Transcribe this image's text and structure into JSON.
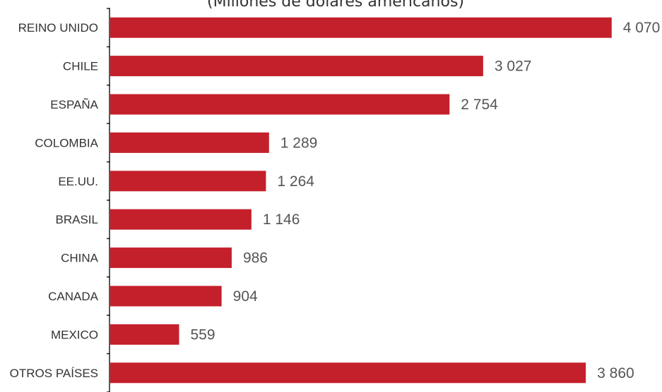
{
  "chart_data": {
    "type": "bar",
    "orientation": "horizontal",
    "subtitle": "(Millones de dólares americanos)",
    "categories": [
      "REINO UNIDO",
      "CHILE",
      "ESPAÑA",
      "COLOMBIA",
      "EE.UU.",
      "BRASIL",
      "CHINA",
      "CANADA",
      "MEXICO",
      "OTROS PAÍSES"
    ],
    "values": [
      4070,
      3027,
      2754,
      1289,
      1264,
      1146,
      986,
      904,
      559,
      3860
    ],
    "value_labels": [
      "4 070",
      "3 027",
      "2 754",
      "1 289",
      "1 264",
      "1 146",
      "986",
      "904",
      "559",
      "3 860"
    ],
    "xlim": [
      0,
      4100
    ],
    "grid": false,
    "legend": "none",
    "bar_color": "#c4202b"
  }
}
